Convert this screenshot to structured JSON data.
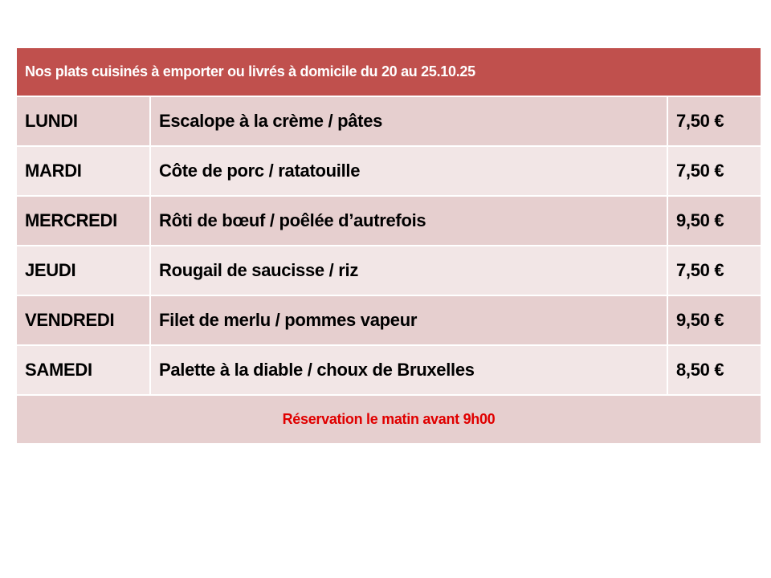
{
  "title": "Nos plats cuisinés à emporter ou livrés à domicile du 20 au 25.10.25",
  "rows": [
    {
      "day": "LUNDI",
      "dish": "Escalope à la crème / pâtes",
      "price": "7,50 €"
    },
    {
      "day": "MARDI",
      "dish": "Côte de porc / ratatouille",
      "price": "7,50 €"
    },
    {
      "day": "MERCREDI",
      "dish": "Rôti de bœuf / poêlée d’autrefois",
      "price": "9,50 €"
    },
    {
      "day": "JEUDI",
      "dish": "Rougail de saucisse / riz",
      "price": "7,50 €"
    },
    {
      "day": "VENDREDI",
      "dish": "Filet de merlu / pommes vapeur",
      "price": "9,50 €"
    },
    {
      "day": "SAMEDI",
      "dish": "Palette à la diable / choux de Bruxelles",
      "price": "8,50 €"
    }
  ],
  "footer": "Réservation le matin avant 9h00",
  "colors": {
    "header": "#C0504D",
    "row_dark": "#E6CFCF",
    "row_light": "#F2E6E6",
    "footer_text": "#E00000"
  }
}
